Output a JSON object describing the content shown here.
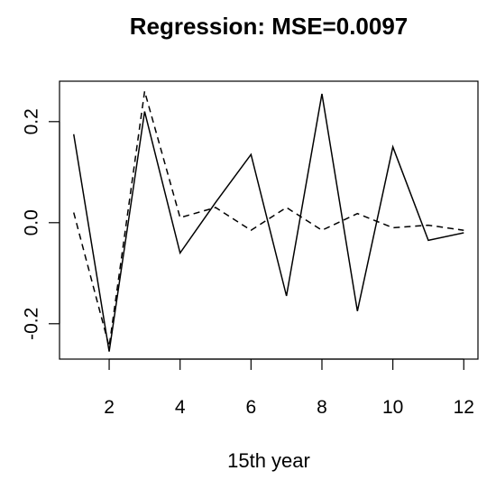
{
  "chart_data": {
    "type": "line",
    "title": "Regression: MSE=0.0097",
    "xlabel": "15th year",
    "ylabel": "",
    "xlim": [
      0.6,
      12.4
    ],
    "ylim": [
      -0.27,
      0.28
    ],
    "xticks": [
      2,
      4,
      6,
      8,
      10,
      12
    ],
    "yticks": [
      -0.2,
      0.0,
      0.2
    ],
    "ytick_labels": [
      "-0.2",
      "0.0",
      "0.2"
    ],
    "grid": false,
    "x": [
      1,
      2,
      3,
      4,
      5,
      6,
      7,
      8,
      9,
      10,
      11,
      12
    ],
    "series": [
      {
        "line_style": "solid",
        "color": "#000000",
        "values": [
          0.175,
          -0.255,
          0.22,
          -0.06,
          0.04,
          0.135,
          -0.145,
          0.255,
          -0.175,
          0.15,
          -0.035,
          -0.02
        ]
      },
      {
        "line_style": "dashed",
        "color": "#000000",
        "values": [
          0.02,
          -0.245,
          0.26,
          0.01,
          0.03,
          -0.015,
          0.03,
          -0.015,
          0.018,
          -0.01,
          -0.005,
          -0.015
        ]
      }
    ]
  }
}
